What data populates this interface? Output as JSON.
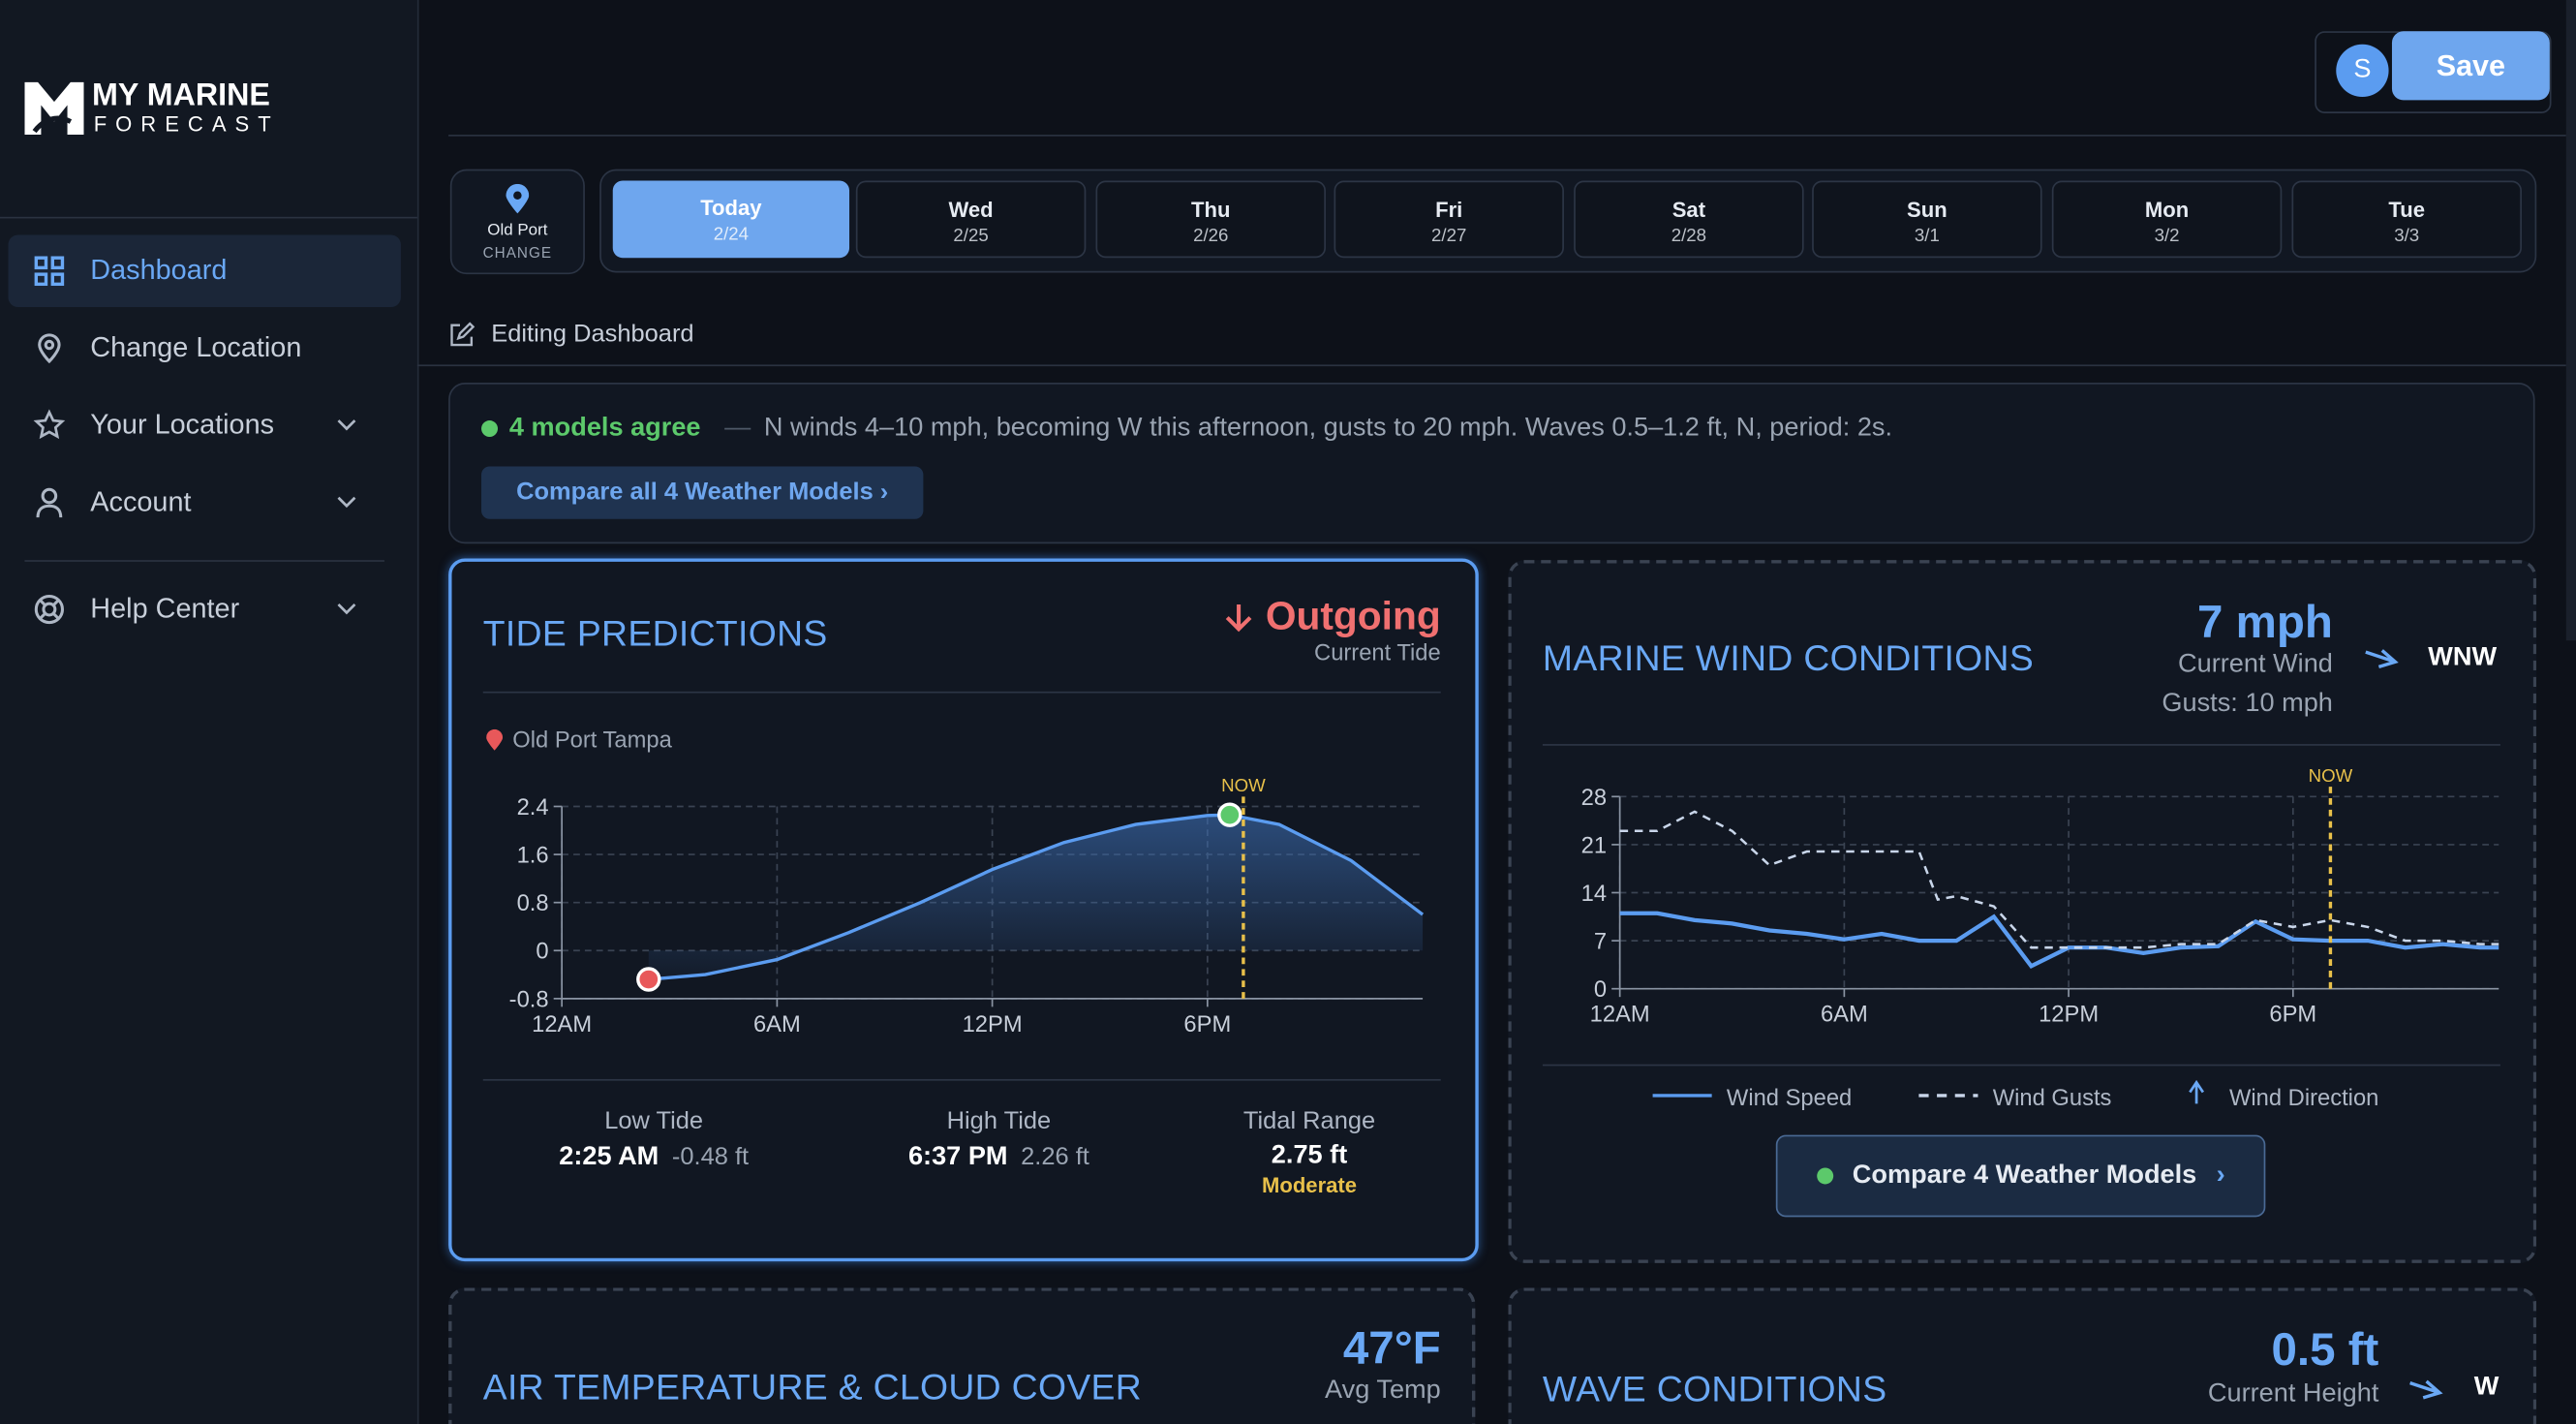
{
  "brand": {
    "line1": "MY MARINE",
    "line2": "FORECAST"
  },
  "nav": [
    {
      "label": "Dashboard"
    },
    {
      "label": "Change Location"
    },
    {
      "label": "Your Locations"
    },
    {
      "label": "Account"
    },
    {
      "label": "Help Center"
    }
  ],
  "header": {
    "avatar": "S",
    "save": "Save"
  },
  "location": {
    "name": "Old Port",
    "action": "CHANGE"
  },
  "days": [
    {
      "day": "Today",
      "date": "2/24"
    },
    {
      "day": "Wed",
      "date": "2/25"
    },
    {
      "day": "Thu",
      "date": "2/26"
    },
    {
      "day": "Fri",
      "date": "2/27"
    },
    {
      "day": "Sat",
      "date": "2/28"
    },
    {
      "day": "Sun",
      "date": "3/1"
    },
    {
      "day": "Mon",
      "date": "3/2"
    },
    {
      "day": "Tue",
      "date": "3/3"
    }
  ],
  "editing": "Editing Dashboard",
  "summary": {
    "status": "4 models agree",
    "dash": "—",
    "text": "N winds 4–10 mph, becoming W this afternoon, gusts to 20 mph. Waves 0.5–1.2 ft, N, period: 2s.",
    "button": "Compare all 4 Weather Models ›"
  },
  "tide_card": {
    "title": "TIDE PREDICTIONS",
    "state": "Outgoing",
    "state_label": "Current Tide",
    "place": "Old Port Tampa",
    "stats": [
      {
        "label": "Low Tide",
        "time": "2:25 AM",
        "value": "-0.48 ft"
      },
      {
        "label": "High Tide",
        "time": "6:37 PM",
        "value": "2.26 ft"
      },
      {
        "label": "Tidal Range",
        "time": "2.75 ft",
        "value": "Moderate"
      }
    ]
  },
  "wind_card": {
    "title": "MARINE WIND CONDITIONS",
    "speed": "7 mph",
    "speed_label": "Current Wind",
    "direction": "WNW",
    "gusts": "Gusts: 10 mph",
    "button": "Compare 4 Weather Models",
    "chevron": "›"
  },
  "temp_card": {
    "title": "AIR TEMPERATURE & CLOUD COVER",
    "value": "47°F",
    "label": "Avg Temp"
  },
  "wave_card": {
    "title": "WAVE CONDITIONS",
    "value": "0.5 ft",
    "label": "Current Height",
    "direction": "W"
  },
  "chart_data": [
    {
      "type": "area",
      "x": [
        2.42,
        4,
        6,
        8,
        10,
        12,
        14,
        16,
        18,
        18.62,
        20,
        22,
        24
      ],
      "values": [
        -0.48,
        -0.4,
        -0.15,
        0.3,
        0.8,
        1.35,
        1.8,
        2.1,
        2.25,
        2.26,
        2.1,
        1.5,
        0.6
      ],
      "color": "#5b9cf0",
      "xlim": [
        0,
        24
      ],
      "ylim": [
        -0.8,
        2.4
      ],
      "xticks": [
        {
          "value": 0,
          "label": "12AM"
        },
        {
          "value": 6,
          "label": "6AM"
        },
        {
          "value": 12,
          "label": "12PM"
        },
        {
          "value": 18,
          "label": "6PM"
        }
      ],
      "yticks": [
        2.4,
        1.6,
        0.8,
        0,
        -0.8
      ],
      "grid": true,
      "points": [
        {
          "x": 2.42,
          "y": -0.48,
          "color": "#e8585a"
        },
        {
          "x": 18.62,
          "y": 2.26,
          "color": "#5cc96b"
        }
      ],
      "now": 19,
      "now_label": "NOW"
    },
    {
      "type": "line",
      "x": [
        0,
        1,
        2,
        3,
        4,
        5,
        6,
        7,
        8,
        8.5,
        9,
        10,
        11,
        12,
        13,
        14,
        15,
        16,
        17,
        18,
        19,
        20,
        21,
        22,
        23,
        23.5
      ],
      "series": [
        {
          "name": "Wind Speed",
          "color": "#5b9cf0",
          "dash": false,
          "values": [
            11,
            11,
            10,
            9.5,
            8.5,
            8,
            7.2,
            8,
            7,
            7,
            7,
            10.5,
            3.3,
            6,
            6,
            5.2,
            6,
            6.2,
            9.8,
            7.2,
            7,
            7,
            6,
            6.5,
            6,
            6
          ]
        },
        {
          "name": "Wind Gusts",
          "color": "#c9d6ea",
          "dash": true,
          "values": [
            23,
            23,
            25.8,
            23,
            18,
            20,
            20,
            20,
            20,
            13,
            13.5,
            12,
            6,
            6,
            6,
            6,
            6.5,
            6.5,
            10,
            9,
            10,
            9,
            7,
            7,
            6.5,
            6.5
          ]
        }
      ],
      "direction_legend": "Wind Direction",
      "xlim": [
        0,
        23.5
      ],
      "ylim": [
        0,
        28
      ],
      "xticks": [
        {
          "value": 0,
          "label": "12AM"
        },
        {
          "value": 6,
          "label": "6AM"
        },
        {
          "value": 12,
          "label": "12PM"
        },
        {
          "value": 18,
          "label": "6PM"
        }
      ],
      "yticks": [
        28,
        21,
        14,
        7,
        0
      ],
      "grid": true,
      "now": 19,
      "now_label": "NOW"
    }
  ]
}
